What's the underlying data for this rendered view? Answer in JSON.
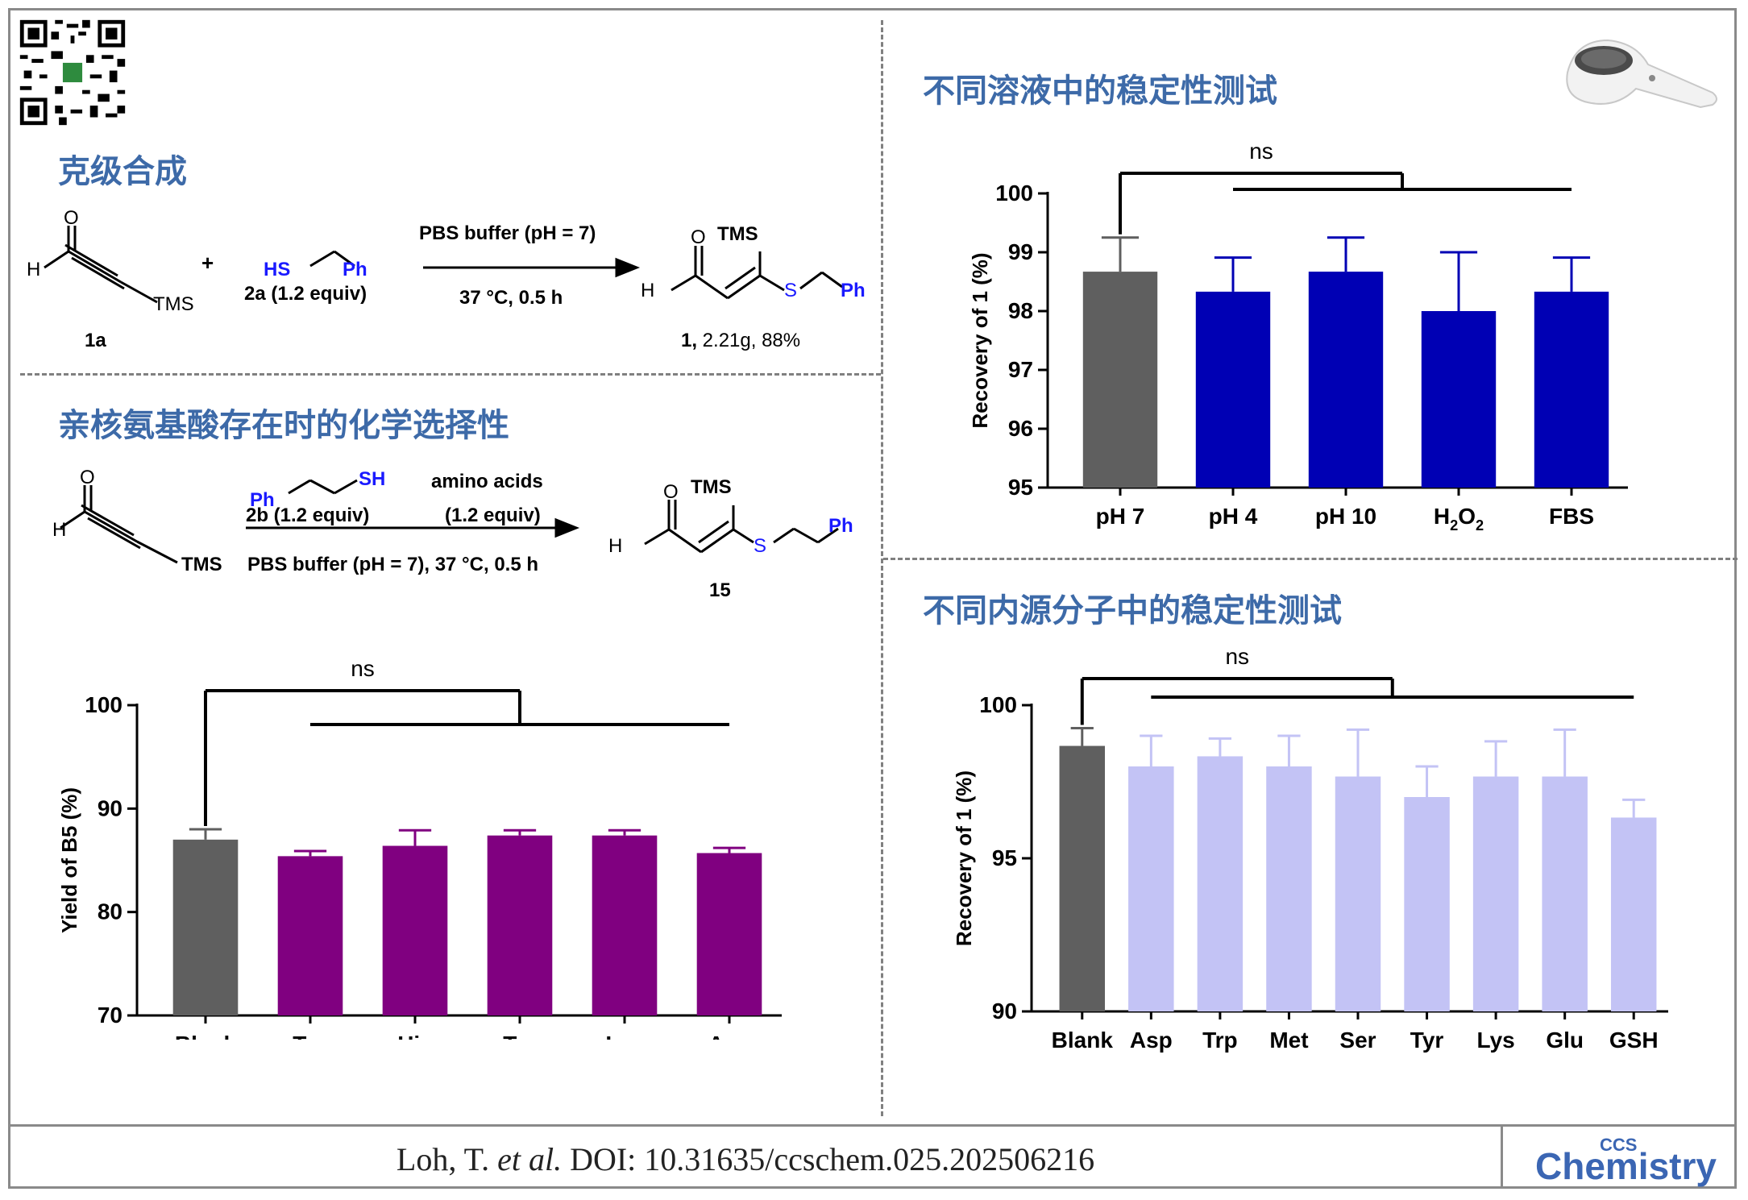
{
  "sections": {
    "gram_scale": "克级合成",
    "chemoselectivity": "亲核氨基酸存在时的化学选择性",
    "solution_stability": "不同溶液中的稳定性测试",
    "endogenous_stability": "不同内源分子中的稳定性测试"
  },
  "scheme1": {
    "reactant_label": "1a",
    "aldehyde_o": "O",
    "aldehyde_h": "H",
    "tms": "TMS",
    "plus": "+",
    "thiol_hs": "HS",
    "thiol_ph": "Ph",
    "reagent": "2a (1.2 equiv)",
    "cond_top": "PBS buffer (pH = 7)",
    "cond_bottom": "37 °C, 0.5 h",
    "product_o": "O",
    "product_h": "H",
    "product_tms": "TMS",
    "product_s": "S",
    "product_ph": "Ph",
    "product_num": "1,",
    "product_yield": " 2.21g, 88%"
  },
  "scheme2": {
    "aldehyde_o": "O",
    "aldehyde_h": "H",
    "tms": "TMS",
    "thiol_ph": "Ph",
    "thiol_sh": "SH",
    "reagent": "2b (1.2 equiv)",
    "amino_top": "amino acids",
    "amino_bottom": "(1.2 equiv)",
    "cond_bottom": "PBS buffer (pH = 7), 37 °C, 0.5 h",
    "product_o": "O",
    "product_h": "H",
    "product_tms": "TMS",
    "product_s": "S",
    "product_ph": "Ph",
    "product_label": "15"
  },
  "footer": {
    "citation_pre": "Loh, T. ",
    "citation_it": "et al.",
    "citation_post": " DOI: 10.31635/ccschem.025.202506216",
    "logo_small": "CCS",
    "logo_big": "Chemistry"
  },
  "colors": {
    "title": "#3d6aa8",
    "gray_bar": "#5f5f5f",
    "purple_bar": "#800080",
    "blue_bar": "#0000b4",
    "lavender_bar": "#c3c3f5",
    "blue_text": "#1a1aff"
  },
  "chart_data": [
    {
      "id": "yield",
      "type": "bar",
      "ylabel": "Yield of B5 (%)",
      "ylim": [
        70,
        100
      ],
      "yticks": [
        70,
        80,
        90,
        100
      ],
      "categories": [
        "Blank",
        "Trp",
        "His",
        "Tyr",
        "Lys",
        "Asp"
      ],
      "values": [
        87.0,
        85.4,
        86.4,
        87.4,
        87.4,
        85.7
      ],
      "errors": [
        1.0,
        0.5,
        1.5,
        0.5,
        0.5,
        0.5
      ],
      "colors": [
        "#5f5f5f",
        "#800080",
        "#800080",
        "#800080",
        "#800080",
        "#800080"
      ],
      "annotation": "ns"
    },
    {
      "id": "solutions",
      "type": "bar",
      "ylabel": "Recovery of 1 (%)",
      "ylim": [
        95,
        100
      ],
      "yticks": [
        95,
        96,
        97,
        98,
        99,
        100
      ],
      "categories": [
        "pH 7",
        "pH 4",
        "pH 10",
        "H2O2",
        "FBS"
      ],
      "values": [
        98.67,
        98.33,
        98.67,
        98.0,
        98.33
      ],
      "errors": [
        0.58,
        0.58,
        0.58,
        1.0,
        0.58
      ],
      "colors": [
        "#5f5f5f",
        "#0000b4",
        "#0000b4",
        "#0000b4",
        "#0000b4"
      ],
      "annotation": "ns"
    },
    {
      "id": "endogenous",
      "type": "bar",
      "ylabel": "Recovery of 1 (%)",
      "ylim": [
        90,
        100
      ],
      "yticks": [
        90,
        95,
        100
      ],
      "categories": [
        "Blank",
        "Asp",
        "Trp",
        "Met",
        "Ser",
        "Tyr",
        "Lys",
        "Glu",
        "GSH"
      ],
      "values": [
        98.67,
        98.0,
        98.33,
        98.0,
        97.67,
        97.0,
        97.67,
        97.67,
        96.33
      ],
      "errors": [
        0.58,
        1.0,
        0.58,
        1.0,
        1.53,
        1.0,
        1.15,
        1.53,
        0.58
      ],
      "colors": [
        "#5f5f5f",
        "#c3c3f5",
        "#c3c3f5",
        "#c3c3f5",
        "#c3c3f5",
        "#c3c3f5",
        "#c3c3f5",
        "#c3c3f5",
        "#c3c3f5"
      ],
      "annotation": "ns"
    }
  ]
}
